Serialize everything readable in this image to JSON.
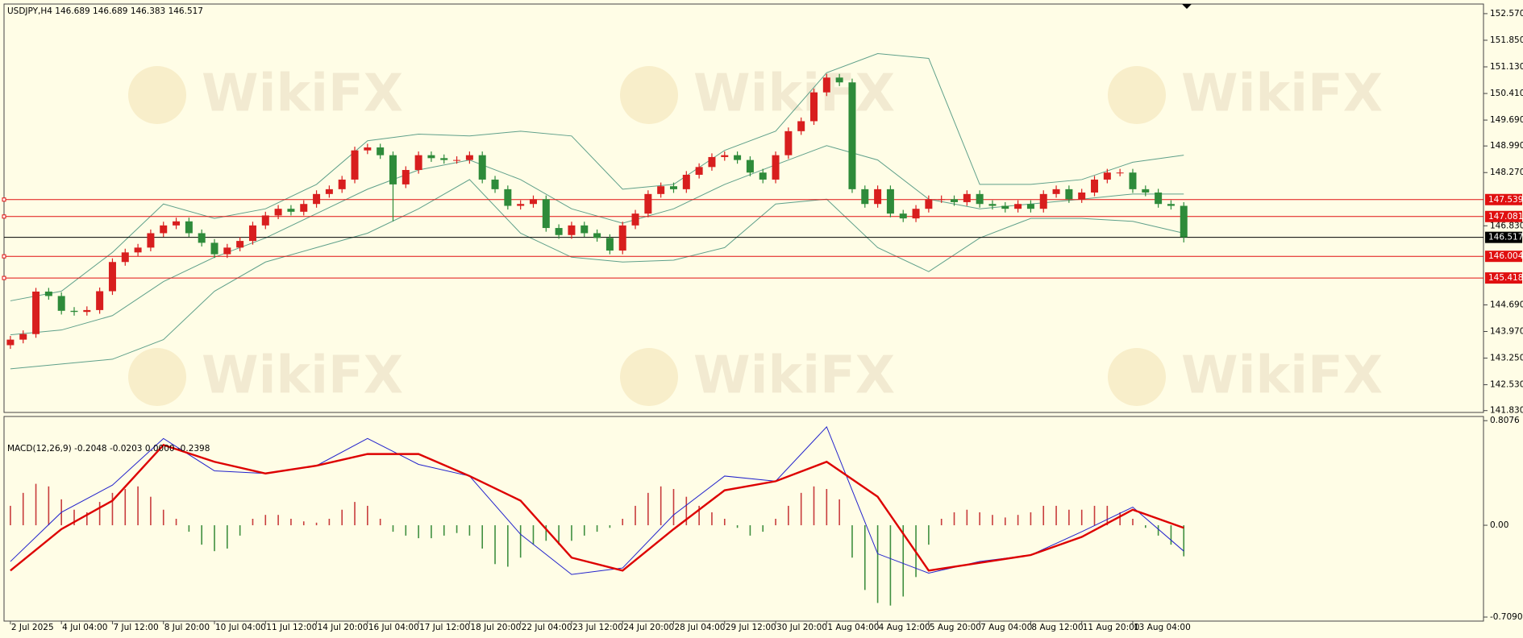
{
  "chart_data": [
    {
      "type": "candlestick",
      "title": "USDJPY,H4 146.689 146.689 146.383 146.517",
      "watermark": "WikiFX",
      "up_color": "#d81e1e",
      "down_color": "#2e8b3a",
      "xlim": [
        -0.5,
        115.5
      ],
      "xticks": [
        {
          "value": 0,
          "label": "2 Jul 2025"
        },
        {
          "value": 4,
          "label": "4 Jul 04:00"
        },
        {
          "value": 8,
          "label": "7 Jul 12:00"
        },
        {
          "value": 12,
          "label": "8 Jul 20:00"
        },
        {
          "value": 16,
          "label": "10 Jul 04:00"
        },
        {
          "value": 20,
          "label": "11 Jul 12:00"
        },
        {
          "value": 24,
          "label": "14 Jul 20:00"
        },
        {
          "value": 28,
          "label": "16 Jul 04:00"
        },
        {
          "value": 32,
          "label": "17 Jul 12:00"
        },
        {
          "value": 36,
          "label": "18 Jul 20:00"
        },
        {
          "value": 40,
          "label": "22 Jul 04:00"
        },
        {
          "value": 44,
          "label": "23 Jul 12:00"
        },
        {
          "value": 48,
          "label": "24 Jul 20:00"
        },
        {
          "value": 52,
          "label": "28 Jul 04:00"
        },
        {
          "value": 56,
          "label": "29 Jul 12:00"
        },
        {
          "value": 60,
          "label": "30 Jul 20:00"
        },
        {
          "value": 64,
          "label": "1 Aug 04:00"
        },
        {
          "value": 68,
          "label": "4 Aug 12:00"
        },
        {
          "value": 72,
          "label": "5 Aug 20:00"
        },
        {
          "value": 76,
          "label": "7 Aug 04:00"
        },
        {
          "value": 80,
          "label": "8 Aug 12:00"
        },
        {
          "value": 84,
          "label": "11 Aug 20:00"
        },
        {
          "value": 88,
          "label": "13 Aug 04:00"
        }
      ],
      "ylim": [
        141.78,
        152.83
      ],
      "yticks": [
        {
          "value": 152.57,
          "label": "152.570"
        },
        {
          "value": 151.85,
          "label": "151.850"
        },
        {
          "value": 151.13,
          "label": "151.130"
        },
        {
          "value": 150.41,
          "label": "150.410"
        },
        {
          "value": 149.69,
          "label": "149.690"
        },
        {
          "value": 148.99,
          "label": "148.990"
        },
        {
          "value": 148.27,
          "label": "148.270"
        },
        {
          "value": 146.83,
          "label": "146.830"
        },
        {
          "value": 144.69,
          "label": "144.690"
        },
        {
          "value": 143.97,
          "label": "143.970"
        },
        {
          "value": 143.25,
          "label": "143.250"
        },
        {
          "value": 142.53,
          "label": "142.530"
        },
        {
          "value": 141.83,
          "label": "141.830"
        }
      ],
      "open": [
        143.6,
        143.75,
        143.9,
        145.05,
        144.93,
        144.53,
        144.5,
        144.55,
        145.06,
        145.85,
        146.11,
        146.24,
        146.63,
        146.84,
        146.95,
        146.63,
        146.37,
        146.06,
        146.24,
        146.42,
        146.84,
        147.11,
        147.29,
        147.21,
        147.42,
        147.69,
        147.82,
        148.08,
        148.87,
        148.95,
        148.74,
        147.95,
        148.34,
        148.74,
        148.66,
        148.61,
        148.61,
        148.74,
        148.08,
        147.82,
        147.37,
        147.42,
        147.55,
        146.77,
        146.58,
        146.84,
        146.63,
        146.5,
        146.16,
        146.84,
        147.16,
        147.69,
        147.9,
        147.82,
        148.21,
        148.42,
        148.69,
        148.74,
        148.61,
        148.27,
        148.08,
        148.74,
        149.39,
        149.66,
        150.44,
        150.84,
        150.71,
        147.82,
        147.42,
        147.82,
        147.16,
        147.03,
        147.29,
        147.55,
        147.55,
        147.47,
        147.69,
        147.42,
        147.37,
        147.29,
        147.42,
        147.29,
        147.69,
        147.82,
        147.55,
        147.73,
        148.08,
        148.27,
        148.27,
        147.82,
        147.73,
        147.42,
        147.37
      ],
      "high": [
        143.85,
        144.0,
        145.15,
        145.15,
        145.03,
        144.63,
        144.65,
        145.16,
        145.95,
        146.21,
        146.34,
        146.73,
        146.94,
        147.05,
        147.05,
        146.73,
        146.47,
        146.34,
        146.52,
        146.94,
        147.21,
        147.39,
        147.39,
        147.52,
        147.79,
        147.92,
        148.18,
        148.97,
        149.05,
        149.05,
        148.84,
        148.44,
        148.84,
        148.84,
        148.76,
        148.71,
        148.84,
        148.84,
        148.18,
        147.92,
        147.52,
        147.65,
        147.65,
        146.87,
        146.94,
        146.94,
        146.73,
        146.6,
        146.94,
        147.26,
        147.79,
        148.0,
        148.0,
        148.31,
        148.52,
        148.79,
        148.84,
        148.84,
        148.71,
        148.37,
        148.84,
        149.49,
        149.76,
        150.54,
        150.94,
        150.94,
        150.81,
        147.92,
        147.92,
        147.92,
        147.26,
        147.39,
        147.65,
        147.65,
        147.65,
        147.79,
        147.79,
        147.52,
        147.47,
        147.52,
        147.52,
        147.79,
        147.92,
        147.92,
        147.83,
        148.18,
        148.37,
        148.37,
        148.37,
        147.92,
        147.83,
        147.52,
        147.47
      ],
      "low": [
        143.5,
        143.65,
        143.8,
        144.83,
        144.43,
        144.4,
        144.4,
        144.45,
        144.96,
        145.75,
        146.01,
        146.14,
        146.53,
        146.74,
        146.53,
        146.27,
        145.96,
        145.96,
        146.14,
        146.32,
        146.74,
        147.01,
        147.11,
        147.11,
        147.32,
        147.59,
        147.72,
        147.98,
        148.77,
        148.64,
        146.95,
        147.85,
        148.24,
        148.56,
        148.51,
        148.51,
        148.51,
        147.98,
        147.72,
        147.27,
        147.27,
        147.32,
        146.67,
        146.48,
        146.48,
        146.53,
        146.4,
        146.06,
        146.06,
        146.74,
        147.06,
        147.59,
        147.72,
        147.72,
        148.11,
        148.32,
        148.59,
        148.51,
        148.17,
        147.98,
        147.98,
        148.64,
        149.29,
        149.56,
        150.34,
        150.61,
        147.72,
        147.32,
        147.32,
        147.06,
        146.93,
        146.93,
        147.19,
        147.45,
        147.37,
        147.37,
        147.32,
        147.27,
        147.19,
        147.19,
        147.19,
        147.19,
        147.59,
        147.45,
        147.45,
        147.63,
        147.98,
        148.17,
        147.72,
        147.63,
        147.32,
        147.27,
        146.38
      ],
      "close": [
        143.75,
        143.9,
        145.05,
        144.93,
        144.53,
        144.5,
        144.55,
        145.06,
        145.85,
        146.11,
        146.24,
        146.63,
        146.84,
        146.95,
        146.63,
        146.37,
        146.06,
        146.24,
        146.42,
        146.84,
        147.11,
        147.29,
        147.21,
        147.42,
        147.69,
        147.82,
        148.08,
        148.87,
        148.95,
        148.74,
        147.95,
        148.34,
        148.74,
        148.66,
        148.61,
        148.61,
        148.74,
        148.08,
        147.82,
        147.37,
        147.42,
        147.55,
        146.77,
        146.58,
        146.84,
        146.63,
        146.5,
        146.16,
        146.84,
        147.16,
        147.69,
        147.9,
        147.82,
        148.21,
        148.42,
        148.69,
        148.74,
        148.61,
        148.27,
        148.08,
        148.74,
        149.39,
        149.66,
        150.44,
        150.84,
        150.71,
        147.82,
        147.42,
        147.82,
        147.16,
        147.03,
        147.29,
        147.55,
        147.55,
        147.47,
        147.69,
        147.42,
        147.37,
        147.29,
        147.42,
        147.29,
        147.69,
        147.82,
        147.55,
        147.73,
        148.08,
        148.27,
        148.27,
        147.82,
        147.73,
        147.42,
        147.37,
        146.52
      ],
      "band_x": [
        0,
        4,
        8,
        12,
        16,
        20,
        24,
        28,
        32,
        36,
        40,
        44,
        48,
        52,
        56,
        60,
        64,
        68,
        72,
        76,
        80,
        84,
        88,
        92
      ],
      "series": [
        {
          "color": "#5fa08a",
          "values": [
            144.8,
            145.06,
            146.11,
            147.42,
            147.03,
            147.29,
            147.95,
            149.13,
            149.31,
            149.26,
            149.39,
            149.26,
            147.82,
            147.95,
            148.87,
            149.39,
            150.97,
            151.49,
            151.36,
            147.95,
            147.95,
            148.08,
            148.55,
            148.74
          ]
        },
        {
          "color": "#5fa08a",
          "values": [
            143.88,
            144.01,
            144.4,
            145.32,
            145.98,
            146.5,
            147.16,
            147.82,
            148.34,
            148.61,
            148.08,
            147.29,
            146.9,
            147.29,
            147.95,
            148.48,
            149.0,
            148.61,
            147.55,
            147.29,
            147.42,
            147.55,
            147.69,
            147.69
          ]
        },
        {
          "color": "#5fa08a",
          "values": [
            142.96,
            143.09,
            143.22,
            143.75,
            145.06,
            145.85,
            146.24,
            146.63,
            147.29,
            148.08,
            146.63,
            145.98,
            145.85,
            145.9,
            146.24,
            147.42,
            147.55,
            146.24,
            145.59,
            146.5,
            147.03,
            147.03,
            146.95,
            146.63
          ]
        }
      ],
      "levels": [
        147.539,
        147.081,
        146.004,
        145.418
      ],
      "level_color": "#e01010",
      "last_price": 146.517,
      "last_color": "#000000"
    },
    {
      "type": "macd",
      "title": "MACD(12,26,9) -0.2048 -0.0203 0.0000 -0.2398",
      "ylim": [
        -0.74,
        0.84
      ],
      "yticks": [
        0.8076,
        {
          "value": 0,
          "label": "0.00"
        },
        {
          "value": -0.709,
          "label": "-0.7090"
        }
      ],
      "pos_color": "#c83c3c",
      "neg_color": "#3f8f3f",
      "histogram": [
        0.15,
        0.25,
        0.32,
        0.3,
        0.2,
        0.12,
        0.1,
        0.18,
        0.25,
        0.28,
        0.3,
        0.22,
        0.12,
        0.05,
        -0.05,
        -0.15,
        -0.2,
        -0.18,
        -0.08,
        0.05,
        0.08,
        0.08,
        0.05,
        0.03,
        0.02,
        0.05,
        0.12,
        0.18,
        0.15,
        0.05,
        -0.05,
        -0.08,
        -0.1,
        -0.1,
        -0.08,
        -0.06,
        -0.08,
        -0.18,
        -0.3,
        -0.32,
        -0.25,
        -0.15,
        -0.12,
        -0.15,
        -0.12,
        -0.08,
        -0.05,
        -0.02,
        0.05,
        0.15,
        0.25,
        0.3,
        0.28,
        0.22,
        0.15,
        0.1,
        0.05,
        -0.02,
        -0.08,
        -0.05,
        0.05,
        0.15,
        0.25,
        0.3,
        0.28,
        0.2,
        -0.25,
        -0.5,
        -0.6,
        -0.62,
        -0.55,
        -0.4,
        -0.15,
        0.05,
        0.1,
        0.12,
        0.1,
        0.08,
        0.06,
        0.08,
        0.1,
        0.15,
        0.15,
        0.12,
        0.12,
        0.15,
        0.15,
        0.1,
        0.05,
        -0.02,
        -0.08,
        -0.15,
        -0.24
      ],
      "line_x": [
        0,
        4,
        8,
        12,
        16,
        20,
        24,
        28,
        32,
        36,
        40,
        44,
        48,
        52,
        56,
        60,
        64,
        68,
        72,
        76,
        80,
        84,
        88,
        92
      ],
      "series": [
        {
          "color": "#2222cc",
          "width": 1,
          "values": [
            -0.28,
            0.1,
            0.31,
            0.67,
            0.42,
            0.4,
            0.46,
            0.67,
            0.47,
            0.38,
            -0.07,
            -0.38,
            -0.33,
            0.08,
            0.38,
            0.34,
            0.76,
            -0.22,
            -0.37,
            -0.28,
            -0.23,
            -0.05,
            0.14,
            -0.2
          ]
        },
        {
          "color": "#dd0000",
          "width": 2.4,
          "values": [
            -0.35,
            -0.03,
            0.19,
            0.62,
            0.49,
            0.4,
            0.46,
            0.55,
            0.55,
            0.38,
            0.19,
            -0.25,
            -0.35,
            -0.03,
            0.27,
            0.34,
            0.49,
            0.22,
            -0.35,
            -0.29,
            -0.23,
            -0.09,
            0.12,
            -0.02
          ]
        }
      ]
    }
  ]
}
